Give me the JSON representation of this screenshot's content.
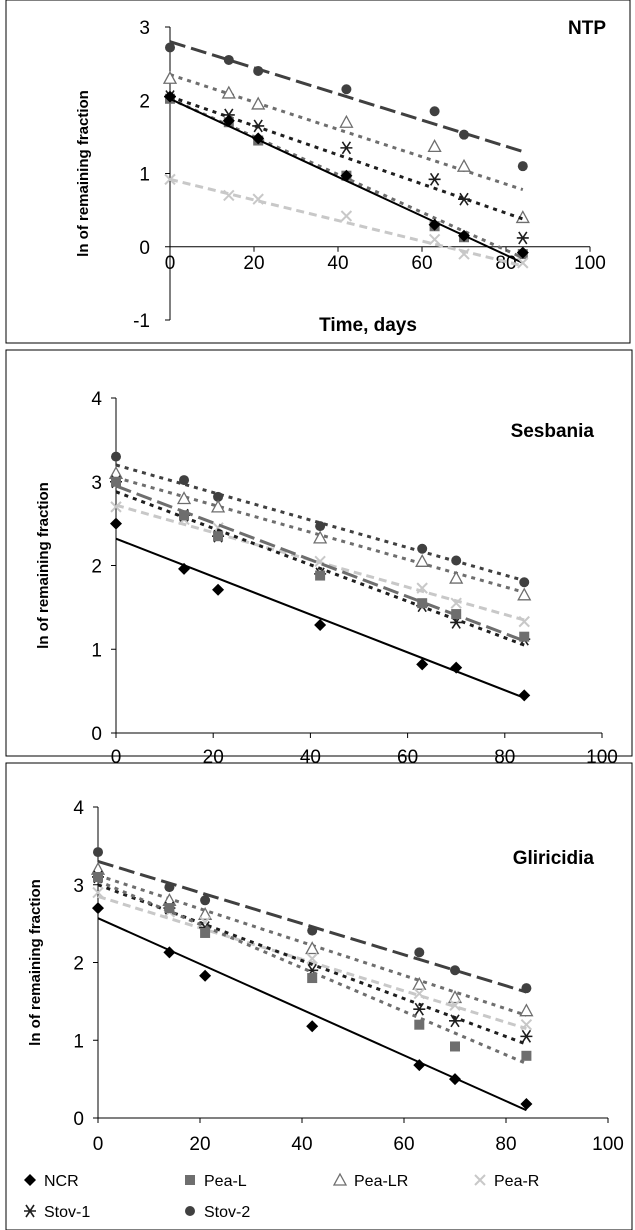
{
  "colors": {
    "NCR": "#000000",
    "Pea-L": "#6e6e6e",
    "Pea-LR": "#6e6e6e",
    "Pea-R": "#c8c8c8",
    "Stov-1": "#1e1e1e",
    "Stov-2": "#404040"
  },
  "legend": {
    "entries": [
      {
        "name": "NCR",
        "marker": "diamond"
      },
      {
        "name": "Pea-L",
        "marker": "square"
      },
      {
        "name": "Pea-LR",
        "marker": "triangle-open"
      },
      {
        "name": "Pea-R",
        "marker": "x"
      },
      {
        "name": "Stov-1",
        "marker": "star"
      },
      {
        "name": "Stov-2",
        "marker": "circle"
      }
    ]
  },
  "chart_data": [
    {
      "type": "scatter",
      "title": "NTP",
      "xlabel": "Time, days",
      "ylabel": "ln of remaining fraction",
      "xlim": [
        0,
        100
      ],
      "ylim": [
        -1,
        3
      ],
      "xticks": [
        0,
        20,
        40,
        60,
        80,
        100
      ],
      "yticks": [
        -1,
        0,
        1,
        2,
        3
      ],
      "series": [
        {
          "name": "Stov-2",
          "marker": "circle",
          "x": [
            0,
            14,
            21,
            42,
            63,
            70,
            84
          ],
          "y": [
            2.72,
            2.55,
            2.4,
            2.15,
            1.85,
            1.53,
            1.1
          ],
          "trend": [
            2.8,
            1.3
          ],
          "dash": "long"
        },
        {
          "name": "Pea-LR",
          "marker": "triangle-open",
          "x": [
            0,
            14,
            21,
            42,
            63,
            70,
            84
          ],
          "y": [
            2.3,
            2.1,
            1.95,
            1.7,
            1.37,
            1.1,
            0.4
          ],
          "trend": [
            2.35,
            0.78
          ],
          "dash": "short"
        },
        {
          "name": "Stov-1",
          "marker": "star",
          "x": [
            0,
            14,
            21,
            42,
            63,
            70,
            84
          ],
          "y": [
            2.05,
            1.8,
            1.65,
            1.35,
            0.92,
            0.65,
            0.12
          ],
          "trend": [
            2.05,
            0.38
          ],
          "dash": "short"
        },
        {
          "name": "Pea-L",
          "marker": "square",
          "x": [
            0,
            14,
            21,
            42,
            63,
            70,
            84
          ],
          "y": [
            2.02,
            1.7,
            1.45,
            0.97,
            0.28,
            0.13,
            -0.1
          ],
          "trend": [
            2.02,
            -0.15
          ],
          "dash": "short"
        },
        {
          "name": "NCR",
          "marker": "diamond",
          "x": [
            0,
            14,
            21,
            42,
            63,
            70,
            84
          ],
          "y": [
            2.05,
            1.72,
            1.48,
            0.97,
            0.3,
            0.15,
            -0.08
          ],
          "trend": [
            2.02,
            -0.22
          ],
          "dash": "solid"
        },
        {
          "name": "Pea-R",
          "marker": "x",
          "x": [
            0,
            14,
            21,
            42,
            63,
            70,
            84
          ],
          "y": [
            0.92,
            0.7,
            0.65,
            0.42,
            0.1,
            -0.1,
            -0.22
          ],
          "trend": [
            0.92,
            -0.26
          ],
          "dash": "medium"
        }
      ]
    },
    {
      "type": "scatter",
      "title": "Sesbania",
      "xlabel": "",
      "ylabel": "ln of remaining fraction",
      "xlim": [
        0,
        100
      ],
      "ylim": [
        0,
        4
      ],
      "xticks": [
        0,
        20,
        40,
        60,
        80,
        100
      ],
      "yticks": [
        0,
        1,
        2,
        3,
        4
      ],
      "series": [
        {
          "name": "Stov-2",
          "marker": "circle",
          "x": [
            0,
            14,
            21,
            42,
            63,
            70,
            84
          ],
          "y": [
            3.3,
            3.02,
            2.82,
            2.47,
            2.2,
            2.06,
            1.8
          ],
          "trend": [
            3.2,
            1.82
          ],
          "dash": "short"
        },
        {
          "name": "Pea-LR",
          "marker": "triangle-open",
          "x": [
            0,
            14,
            21,
            42,
            63,
            70,
            84
          ],
          "y": [
            3.1,
            2.8,
            2.7,
            2.33,
            2.05,
            1.85,
            1.65
          ],
          "trend": [
            3.05,
            1.68
          ],
          "dash": "short"
        },
        {
          "name": "Pea-R",
          "marker": "x",
          "x": [
            0,
            14,
            21,
            42,
            63,
            70,
            84
          ],
          "y": [
            2.7,
            2.55,
            2.45,
            2.05,
            1.73,
            1.55,
            1.33
          ],
          "trend": [
            2.72,
            1.35
          ],
          "dash": "medium"
        },
        {
          "name": "Stov-1",
          "marker": "star",
          "x": [
            0,
            14,
            21,
            42,
            63,
            70,
            84
          ],
          "y": [
            3.0,
            2.6,
            2.35,
            1.9,
            1.52,
            1.32,
            1.12
          ],
          "trend": [
            2.88,
            1.05
          ],
          "dash": "short"
        },
        {
          "name": "Pea-L",
          "marker": "square",
          "x": [
            0,
            14,
            21,
            42,
            63,
            70,
            84
          ],
          "y": [
            3.0,
            2.6,
            2.35,
            1.88,
            1.55,
            1.42,
            1.15
          ],
          "trend": [
            2.95,
            1.1
          ],
          "dash": "long"
        },
        {
          "name": "NCR",
          "marker": "diamond",
          "x": [
            0,
            14,
            21,
            42,
            63,
            70,
            84
          ],
          "y": [
            2.5,
            1.96,
            1.71,
            1.29,
            0.82,
            0.78,
            0.45
          ],
          "trend": [
            2.32,
            0.42
          ],
          "dash": "solid"
        }
      ]
    },
    {
      "type": "scatter",
      "title": "Gliricidia",
      "xlabel": "",
      "ylabel": "ln of remaining fraction",
      "xlim": [
        0,
        100
      ],
      "ylim": [
        0,
        4
      ],
      "xticks": [
        0,
        20,
        40,
        60,
        80,
        100
      ],
      "yticks": [
        0,
        1,
        2,
        3,
        4
      ],
      "series": [
        {
          "name": "Stov-2",
          "marker": "circle",
          "x": [
            0,
            14,
            21,
            42,
            63,
            70,
            84
          ],
          "y": [
            3.42,
            2.97,
            2.8,
            2.41,
            2.13,
            1.9,
            1.67
          ],
          "trend": [
            3.3,
            1.62
          ],
          "dash": "long"
        },
        {
          "name": "Pea-LR",
          "marker": "triangle-open",
          "x": [
            0,
            14,
            21,
            42,
            63,
            70,
            84
          ],
          "y": [
            3.2,
            2.8,
            2.62,
            2.18,
            1.72,
            1.55,
            1.38
          ],
          "trend": [
            3.12,
            1.32
          ],
          "dash": "short"
        },
        {
          "name": "Pea-R",
          "marker": "x",
          "x": [
            0,
            14,
            21,
            42,
            63,
            70,
            84
          ],
          "y": [
            2.9,
            2.65,
            2.52,
            2.05,
            1.6,
            1.45,
            1.2
          ],
          "trend": [
            2.85,
            1.15
          ],
          "dash": "medium"
        },
        {
          "name": "Stov-1",
          "marker": "star",
          "x": [
            0,
            14,
            21,
            42,
            63,
            70,
            84
          ],
          "y": [
            3.1,
            2.7,
            2.45,
            1.9,
            1.4,
            1.25,
            1.05
          ],
          "trend": [
            3.0,
            0.95
          ],
          "dash": "short"
        },
        {
          "name": "Pea-L",
          "marker": "square",
          "x": [
            0,
            14,
            21,
            42,
            63,
            70,
            84
          ],
          "y": [
            3.1,
            2.7,
            2.38,
            1.8,
            1.2,
            0.92,
            0.8
          ],
          "trend": [
            3.05,
            0.7
          ],
          "dash": "short"
        },
        {
          "name": "NCR",
          "marker": "diamond",
          "x": [
            0,
            14,
            21,
            42,
            63,
            70,
            84
          ],
          "y": [
            2.7,
            2.13,
            1.83,
            1.18,
            0.68,
            0.5,
            0.18
          ],
          "trend": [
            2.57,
            0.1
          ],
          "dash": "solid"
        }
      ]
    }
  ]
}
